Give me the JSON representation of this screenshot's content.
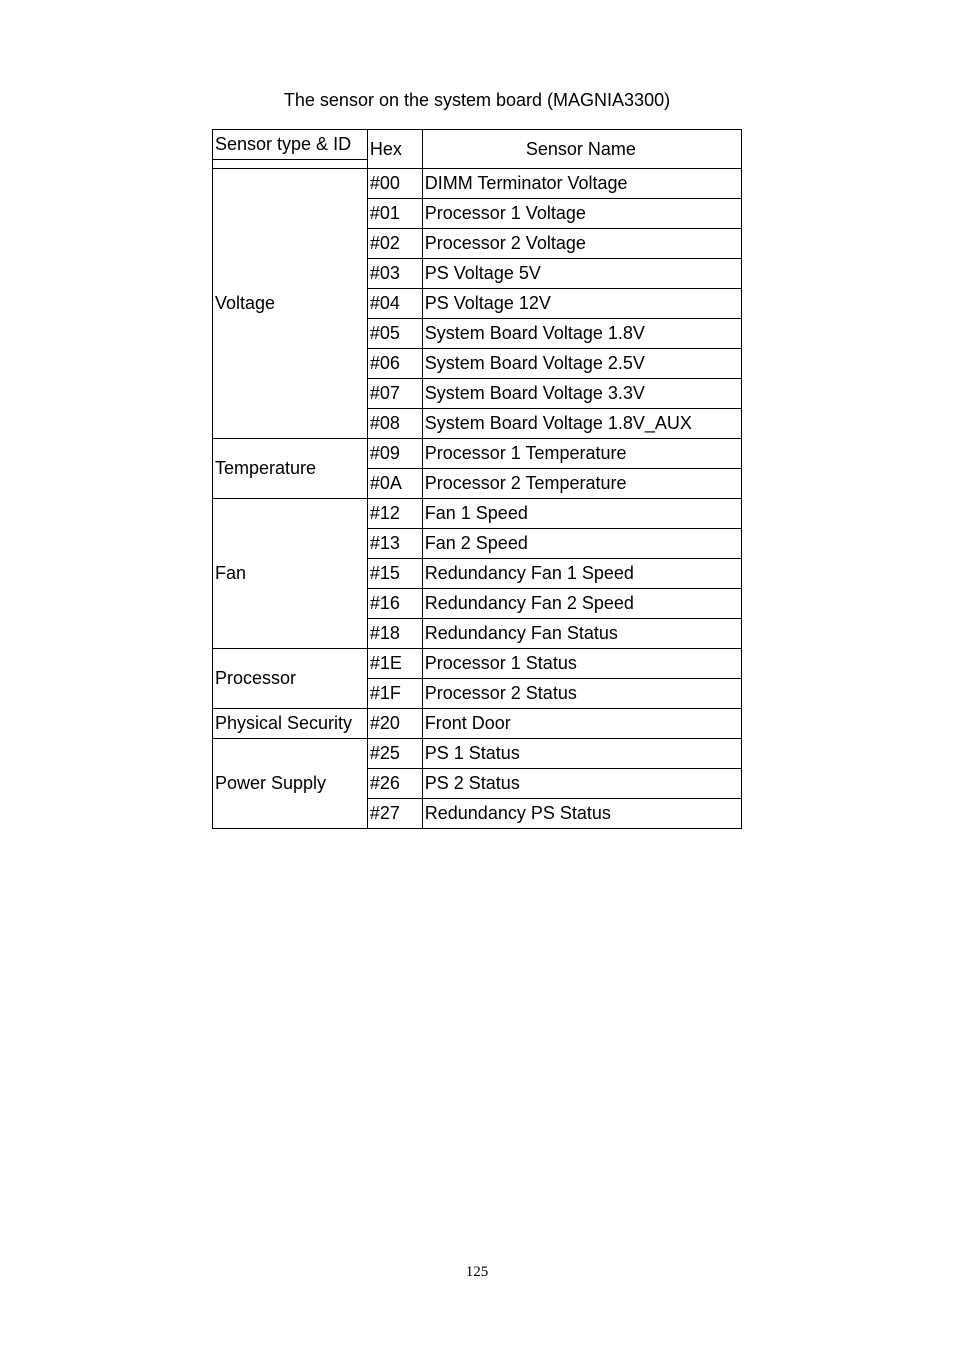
{
  "caption": "The sensor on the system board (MAGNIA3300)",
  "header": {
    "sensor_type_id": "Sensor type & ID",
    "hex": "Hex",
    "sensor_name": "Sensor Name"
  },
  "rows": [
    {
      "type": "Voltage",
      "type_rowspan": 9,
      "hex": "#00",
      "name": "DIMM Terminator Voltage"
    },
    {
      "hex": "#01",
      "name": "Processor 1 Voltage"
    },
    {
      "hex": "#02",
      "name": "Processor 2 Voltage"
    },
    {
      "hex": "#03",
      "name": "PS Voltage 5V"
    },
    {
      "hex": "#04",
      "name": "PS Voltage 12V"
    },
    {
      "hex": "#05",
      "name": "System Board Voltage 1.8V"
    },
    {
      "hex": "#06",
      "name": "System Board Voltage 2.5V"
    },
    {
      "hex": "#07",
      "name": "System Board Voltage 3.3V"
    },
    {
      "hex": "#08",
      "name": "System Board Voltage 1.8V_AUX"
    },
    {
      "type": "Temperature",
      "type_rowspan": 2,
      "hex": "#09",
      "name": "Processor 1 Temperature"
    },
    {
      "hex": "#0A",
      "name": "Processor 2 Temperature"
    },
    {
      "type": "Fan",
      "type_rowspan": 5,
      "hex": "#12",
      "name": "Fan 1 Speed"
    },
    {
      "hex": "#13",
      "name": "Fan 2 Speed"
    },
    {
      "hex": "#15",
      "name": "Redundancy Fan 1 Speed"
    },
    {
      "hex": "#16",
      "name": "Redundancy Fan 2 Speed"
    },
    {
      "hex": "#18",
      "name": "Redundancy Fan Status"
    },
    {
      "type": "Processor",
      "type_rowspan": 2,
      "hex": "#1E",
      "name": "Processor 1 Status"
    },
    {
      "hex": "#1F",
      "name": "Processor 2 Status"
    },
    {
      "type": "Physical Security",
      "type_rowspan": 1,
      "hex": "#20",
      "name": "Front Door"
    },
    {
      "type": "Power Supply",
      "type_rowspan": 3,
      "hex": "#25",
      "name": "PS 1 Status"
    },
    {
      "hex": "#26",
      "name": "PS 2 Status"
    },
    {
      "hex": "#27",
      "name": "Redundancy PS Status"
    }
  ],
  "page_number": "125",
  "colors": {
    "text": "#000000",
    "background": "#ffffff",
    "border": "#000000"
  }
}
